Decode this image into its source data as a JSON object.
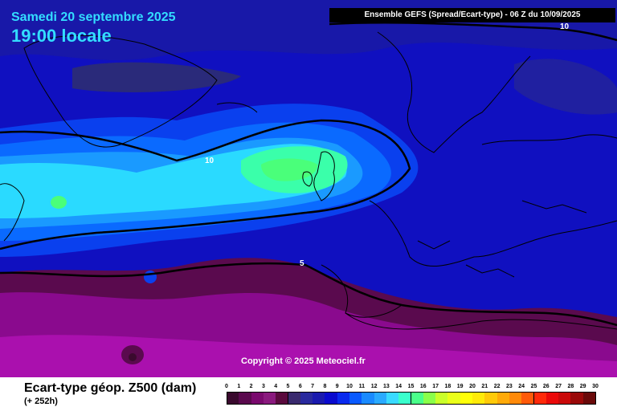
{
  "header": {
    "date": "Samedi 20 septembre 2025",
    "hour": "19:00 locale",
    "model": "Ensemble GEFS  (Spread/Ecart-type) - 06 Z du 10/09/2025"
  },
  "map": {
    "copyright": "Copyright © 2025 Meteociel.fr",
    "contour_labels": [
      "10",
      "10",
      "5"
    ]
  },
  "footer": {
    "parameter": "Ecart-type géop. Z500 (dam)",
    "lead": "(+ 252h)"
  },
  "scale": {
    "ticks": [
      "0",
      "1",
      "2",
      "3",
      "4",
      "5",
      "6",
      "7",
      "8",
      "9",
      "10",
      "11",
      "12",
      "13",
      "14",
      "15",
      "16",
      "17",
      "18",
      "19",
      "20",
      "21",
      "22",
      "23",
      "24",
      "25",
      "26",
      "27",
      "28",
      "29",
      "30"
    ],
    "colors": [
      "#3a0a2e",
      "#5a0a4e",
      "#7a0a6e",
      "#8a1a7e",
      "#5a0a3e",
      "#3a2a6e",
      "#2a2a9e",
      "#1a1aae",
      "#0a0ace",
      "#0a2aee",
      "#0a5aff",
      "#1a8aff",
      "#2aaaff",
      "#3adaff",
      "#3affcc",
      "#4aff8a",
      "#8aff4a",
      "#caff2a",
      "#eaff1a",
      "#ffff0a",
      "#ffea0a",
      "#ffca0a",
      "#ffaa0a",
      "#ff8a0a",
      "#ff5a0a",
      "#ff2a0a",
      "#ea0a0a",
      "#ca0a0a",
      "#9a0a0a",
      "#6a0a0a",
      "#000000"
    ]
  }
}
